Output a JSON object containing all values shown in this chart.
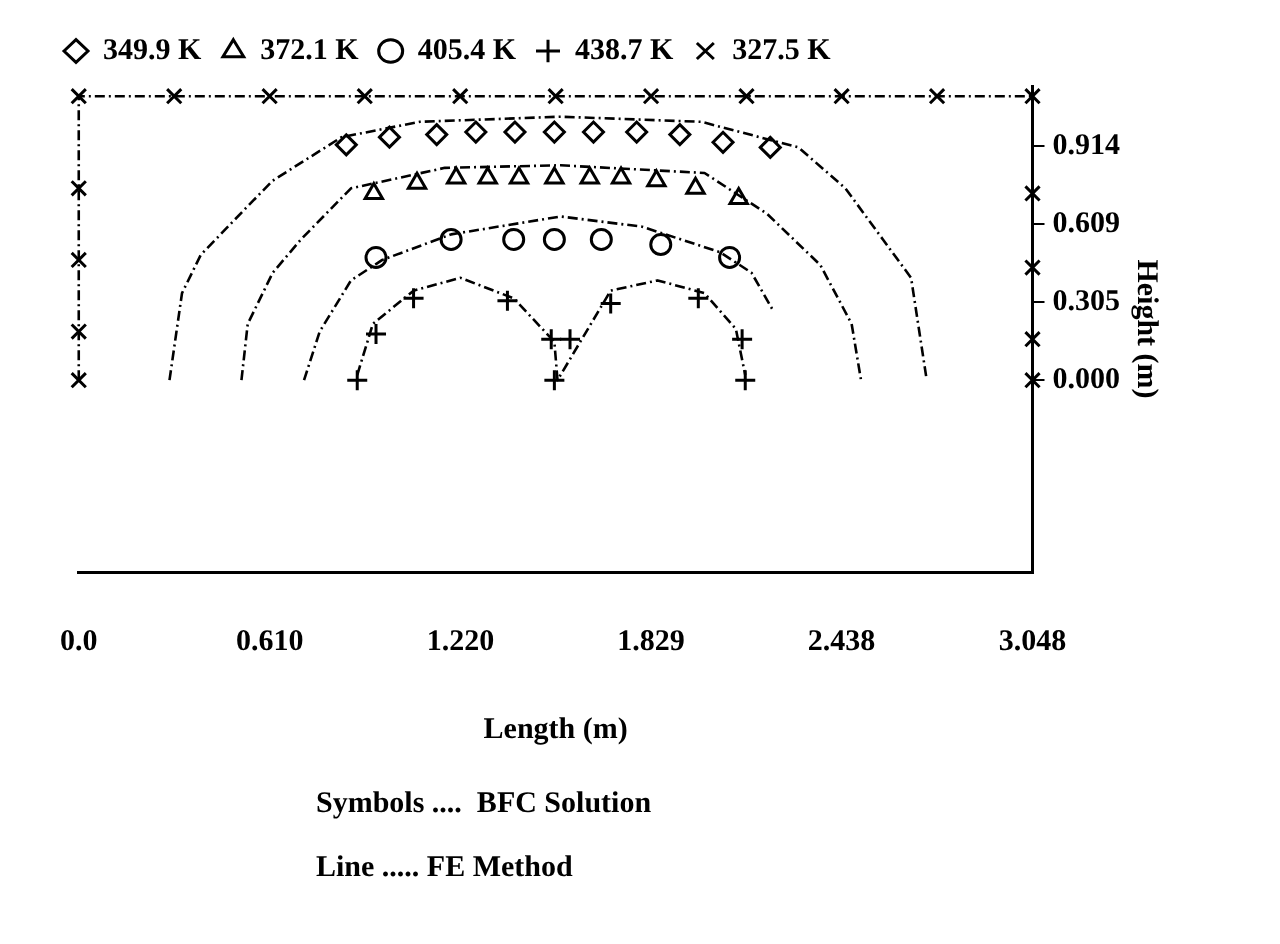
{
  "chart_data": {
    "type": "scatter",
    "xlabel": "Length (m)",
    "ylabel": "Height (m)",
    "legend": "top left",
    "grid": false,
    "xlim": [
      0,
      3.048
    ],
    "ylim": [
      -0.75,
      1.15
    ],
    "xticks": [
      {
        "value": 0,
        "label": "0.0"
      },
      {
        "value": 0.61,
        "label": "0.610"
      },
      {
        "value": 1.22,
        "label": "1.220"
      },
      1.829,
      2.438,
      3.048
    ],
    "yticks": [
      {
        "value": 0,
        "label": "0.000"
      },
      0.305,
      0.609,
      0.914
    ],
    "annotations": [
      "Symbols ....  BFC Solution",
      "Line ..... FE Method"
    ],
    "series": [
      {
        "name": "349.9 K",
        "type": "scatter",
        "marker": "diamond",
        "color": "#000000",
        "x": [
          0.855,
          0.993,
          1.144,
          1.269,
          1.394,
          1.52,
          1.645,
          1.783,
          1.921,
          2.059,
          2.21
        ],
        "values": [
          0.92,
          0.95,
          0.96,
          0.97,
          0.97,
          0.97,
          0.97,
          0.97,
          0.96,
          0.93,
          0.91
        ]
      },
      {
        "name": "372.1 K",
        "type": "scatter",
        "marker": "triangle",
        "color": "#000000",
        "x": [
          0.943,
          1.081,
          1.206,
          1.307,
          1.407,
          1.52,
          1.633,
          1.733,
          1.846,
          1.971,
          2.109
        ],
        "values": [
          0.73,
          0.77,
          0.79,
          0.79,
          0.79,
          0.79,
          0.79,
          0.79,
          0.78,
          0.75,
          0.71
        ]
      },
      {
        "name": "405.4 K",
        "type": "scatter",
        "marker": "circle",
        "color": "#000000",
        "x": [
          0.95,
          1.19,
          1.39,
          1.52,
          1.67,
          1.86,
          2.08
        ],
        "values": [
          0.48,
          0.55,
          0.55,
          0.55,
          0.55,
          0.53,
          0.48
        ]
      },
      {
        "name": "438.7 K",
        "type": "scatter",
        "marker": "cross",
        "color": "#000000",
        "x": [
          0.89,
          0.95,
          1.07,
          1.37,
          1.51,
          1.57,
          1.52,
          1.7,
          1.98,
          2.12,
          2.13
        ],
        "values": [
          0,
          0.18,
          0.32,
          0.31,
          0.16,
          0.16,
          0,
          0.3,
          0.32,
          0.16,
          0
        ]
      },
      {
        "name": "327.5 K",
        "type": "scatter",
        "marker": "x",
        "color": "#000000",
        "x": [
          0,
          0.305,
          0.61,
          0.914,
          1.219,
          1.524,
          1.829,
          2.134,
          2.438,
          2.743,
          3.048,
          0,
          0,
          0,
          0,
          3.048,
          3.048,
          3.048,
          3.048
        ],
        "values": [
          1.11,
          1.11,
          1.11,
          1.11,
          1.11,
          1.11,
          1.11,
          1.11,
          1.11,
          1.11,
          1.11,
          0.75,
          0.47,
          0.19,
          0,
          0.73,
          0.44,
          0.16,
          0
        ]
      },
      {
        "type": "line",
        "line_style": "dashed",
        "marker": "none",
        "color": "#000000",
        "x": [
          0,
          0,
          3.048,
          3.048
        ],
        "values": [
          0,
          1.11,
          1.11,
          0
        ]
      },
      {
        "type": "line",
        "line_style": "dashed",
        "marker": "none",
        "color": "#000000",
        "x": [
          0.29,
          0.33,
          0.39,
          0.54,
          0.62,
          0.84,
          1.09,
          1.54,
          1.99,
          2.3,
          2.45,
          2.57,
          2.66,
          2.71
        ],
        "values": [
          0,
          0.34,
          0.49,
          0.68,
          0.78,
          0.95,
          1.01,
          1.03,
          1.01,
          0.91,
          0.75,
          0.55,
          0.4,
          0
        ]
      },
      {
        "type": "line",
        "line_style": "dashed",
        "marker": "none",
        "color": "#000000",
        "x": [
          0.52,
          0.54,
          0.62,
          0.71,
          0.87,
          1.17,
          1.54,
          2.0,
          2.2,
          2.37,
          2.47,
          2.5
        ],
        "values": [
          0,
          0.22,
          0.42,
          0.55,
          0.75,
          0.83,
          0.84,
          0.81,
          0.65,
          0.45,
          0.22,
          0
        ]
      },
      {
        "type": "line",
        "line_style": "dashed",
        "marker": "none",
        "color": "#000000",
        "x": [
          0.72,
          0.77,
          0.87,
          0.97,
          1.19,
          1.54,
          1.8,
          2.05,
          2.15,
          2.22
        ],
        "values": [
          0,
          0.19,
          0.39,
          0.47,
          0.57,
          0.64,
          0.6,
          0.5,
          0.42,
          0.27
        ]
      },
      {
        "type": "line",
        "line_style": "dashed",
        "marker": "none",
        "color": "#000000",
        "x": [
          0.89,
          0.94,
          1.07,
          1.22,
          1.39,
          1.52,
          1.53,
          1.7,
          1.85,
          2.0,
          2.1,
          2.13
        ],
        "values": [
          0.02,
          0.22,
          0.35,
          0.4,
          0.32,
          0.15,
          0,
          0.35,
          0.39,
          0.34,
          0.2,
          0.02
        ]
      }
    ]
  }
}
